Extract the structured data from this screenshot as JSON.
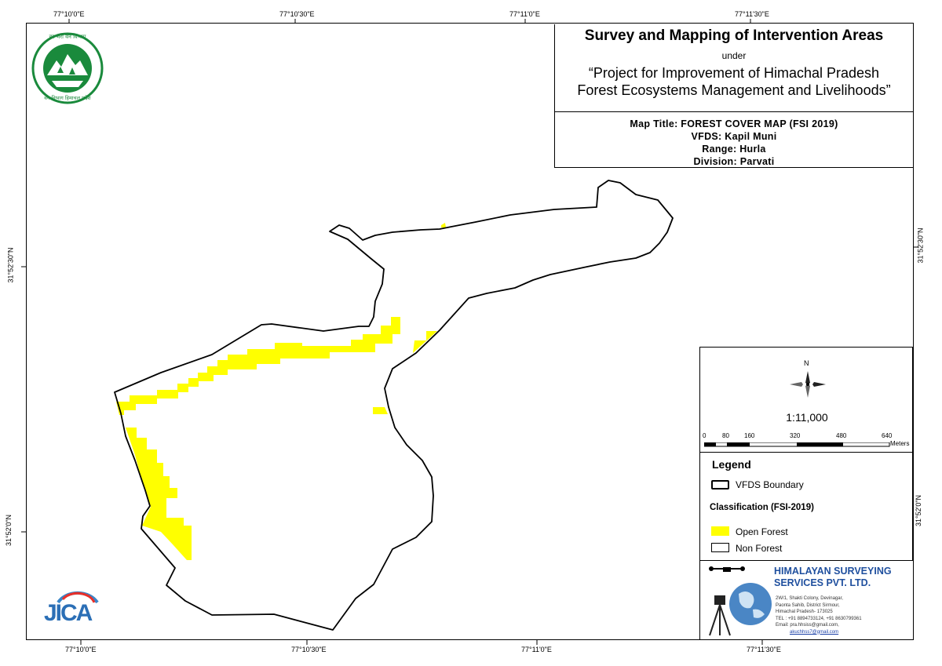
{
  "title": {
    "main": "Survey and Mapping of Intervention Areas",
    "under": "under",
    "project_line1": "“Project for Improvement of Himachal Pradesh",
    "project_line2": "Forest Ecosystems Management and Livelihoods”"
  },
  "info": {
    "map_title": "Map Title: FOREST COVER MAP (FSI 2019)",
    "vfds": "VFDS: Kapil Muni",
    "range": "Range: Hurla",
    "division": "Division: Parvati"
  },
  "grid": {
    "top_labels": [
      "77°10'0\"E",
      "77°10'30\"E",
      "77°11'0\"E",
      "77°11'30\"E"
    ],
    "bottom_labels": [
      "77°10'0\"E",
      "77°10'30\"E",
      "77°11'0\"E",
      "77°11'30\"E"
    ],
    "left_labels": [
      "31°52'30\"N",
      "31°52'0\"N"
    ],
    "right_labels": [
      "31°52'30\"N",
      "31°52'0\"N"
    ]
  },
  "north_label": "N",
  "scale_text": "1:11,000",
  "scale_bar": {
    "labels": [
      "0",
      "80",
      "160",
      "320",
      "480",
      "640"
    ],
    "unit": "Meters"
  },
  "legend": {
    "heading": "Legend",
    "boundary_label": "VFDS Boundary",
    "classification_heading": "Classification (FSI-2019)",
    "items": [
      {
        "label": "Open Forest",
        "color": "#ffff00"
      },
      {
        "label": "Non Forest",
        "color": "#ffffff"
      }
    ]
  },
  "company": {
    "name_line1": "HIMALAYAN SURVEYING",
    "name_line2": "SERVICES PVT. LTD.",
    "address": [
      "2W/1, Shakti Colony, Devinagar,",
      "Paonta Sahib, District Sirmour,",
      "Himachal Pradesh- 173025",
      "TEL : +91 8894733124, +91 8630799361",
      "Email: pra.hhsiss@gmail.com,",
      "akuchhss7@gmail.com"
    ]
  },
  "logos": {
    "forest_dept_arc_text": "हर भरा वन विभाग",
    "forest_dept_bottom_text": "वन विभाग हिमाचल प्रदेश",
    "jica_text": "JICA"
  },
  "colors": {
    "open_forest": "#ffff00",
    "boundary": "#000000",
    "company_name": "#1f4f9e",
    "forest_logo_green": "#1a8a3c"
  }
}
